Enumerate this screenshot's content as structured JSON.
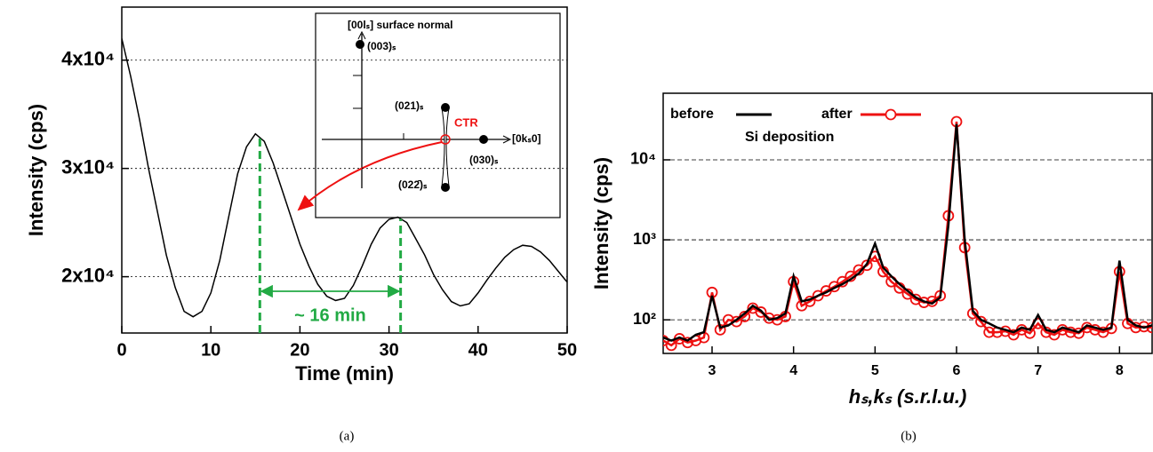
{
  "chart_data": [
    {
      "type": "line",
      "caption": "(a)",
      "xlabel": "Time (min)",
      "ylabel": "Intensity (cps)",
      "x": [
        0,
        1,
        2,
        3,
        4,
        5,
        6,
        7,
        8,
        9,
        10,
        11,
        12,
        13,
        14,
        15,
        16,
        17,
        18,
        19,
        20,
        21,
        22,
        23,
        24,
        25,
        26,
        27,
        28,
        29,
        30,
        31,
        32,
        33,
        34,
        35,
        36,
        37,
        38,
        39,
        40,
        41,
        42,
        43,
        44,
        45,
        46,
        47,
        48,
        49,
        50
      ],
      "series": [
        {
          "color": "#000000",
          "values": [
            42000,
            38500,
            34500,
            30000,
            26000,
            22000,
            19000,
            16800,
            16300,
            16800,
            18500,
            21500,
            25500,
            29500,
            32000,
            33200,
            32500,
            30500,
            28000,
            25500,
            23000,
            21000,
            19300,
            18200,
            17800,
            18000,
            19200,
            21000,
            23000,
            24500,
            25300,
            25500,
            25000,
            23500,
            22000,
            20200,
            18800,
            17700,
            17300,
            17500,
            18500,
            19700,
            20800,
            21800,
            22500,
            22900,
            22800,
            22300,
            21500,
            20500,
            19500
          ]
        }
      ],
      "xlim": [
        0,
        50
      ],
      "xticks": [
        0,
        10,
        20,
        30,
        40,
        50
      ],
      "ylim": [
        14800,
        44900
      ],
      "yticks": [
        {
          "value": 20000,
          "label": "2x10⁴"
        },
        {
          "value": 30000,
          "label": "3x10⁴"
        },
        {
          "value": 40000,
          "label": "4x10⁴"
        }
      ],
      "grid": true,
      "vlines": [
        15.5,
        31.3
      ],
      "vline_color": "#22aa44",
      "span_label": "~ 16 min",
      "inset": [
        "[00lₛ] surface normal",
        "(003)ₛ",
        "(021)ₛ",
        "CTR",
        "[0kₛ0]",
        "(030)ₛ",
        "(022̄)ₛ"
      ]
    },
    {
      "type": "line",
      "caption": "(b)",
      "xlabel": "hₛ,kₛ (s.r.l.u.)",
      "ylabel": "Intensity (cps)",
      "log_y": true,
      "x": [
        2.4,
        2.5,
        2.6,
        2.7,
        2.8,
        2.9,
        3.0,
        3.1,
        3.2,
        3.3,
        3.4,
        3.5,
        3.6,
        3.7,
        3.8,
        3.9,
        4.0,
        4.1,
        4.2,
        4.3,
        4.4,
        4.5,
        4.6,
        4.7,
        4.8,
        4.9,
        5.0,
        5.1,
        5.2,
        5.3,
        5.4,
        5.5,
        5.6,
        5.7,
        5.8,
        5.9,
        6.0,
        6.1,
        6.2,
        6.3,
        6.4,
        6.5,
        6.6,
        6.7,
        6.8,
        6.9,
        7.0,
        7.1,
        7.2,
        7.3,
        7.4,
        7.5,
        7.6,
        7.7,
        7.8,
        7.9,
        8.0,
        8.1,
        8.2,
        8.3,
        8.4
      ],
      "series": [
        {
          "name": "after",
          "color": "#ee1111",
          "marker": "circle",
          "values": [
            55,
            48,
            58,
            52,
            55,
            60,
            220,
            75,
            100,
            95,
            110,
            140,
            125,
            105,
            100,
            110,
            300,
            150,
            170,
            200,
            230,
            260,
            300,
            350,
            420,
            480,
            620,
            400,
            300,
            250,
            210,
            180,
            165,
            170,
            200,
            2000,
            30000,
            800,
            120,
            95,
            70,
            70,
            72,
            65,
            75,
            68,
            90,
            70,
            65,
            75,
            70,
            68,
            80,
            75,
            70,
            78,
            400,
            90,
            80,
            82,
            80
          ]
        },
        {
          "name": "before",
          "color": "#000000",
          "values": [
            60,
            55,
            60,
            55,
            65,
            70,
            200,
            80,
            85,
            100,
            120,
            150,
            130,
            100,
            105,
            120,
            350,
            170,
            180,
            200,
            220,
            250,
            280,
            320,
            380,
            500,
            900,
            450,
            350,
            280,
            230,
            190,
            170,
            160,
            190,
            1500,
            28000,
            1000,
            130,
            100,
            90,
            80,
            75,
            70,
            80,
            75,
            115,
            75,
            70,
            80,
            75,
            70,
            85,
            80,
            75,
            80,
            550,
            100,
            85,
            80,
            85
          ]
        }
      ],
      "legend_note": "Si deposition",
      "xlim": [
        2.4,
        8.4
      ],
      "xticks": [
        3,
        4,
        5,
        6,
        7,
        8
      ],
      "ylim": [
        38,
        68000
      ],
      "yticks": [
        {
          "value": 100,
          "label": "10²"
        },
        {
          "value": 1000,
          "label": "10³"
        },
        {
          "value": 10000,
          "label": "10⁴"
        }
      ],
      "grid": true
    }
  ]
}
